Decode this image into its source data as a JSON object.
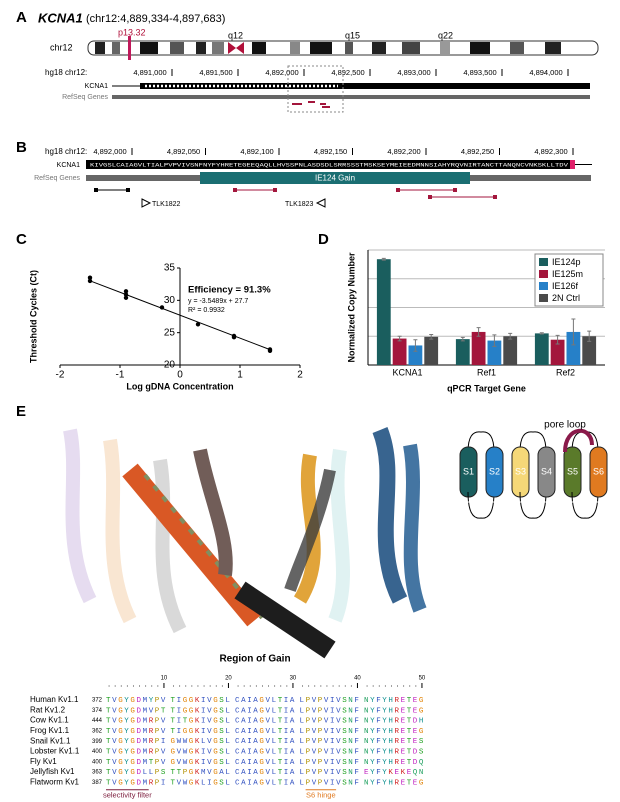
{
  "panel_labels": [
    "A",
    "B",
    "C",
    "D",
    "E"
  ],
  "panel_a": {
    "gene": "KCNA1",
    "coords": "(chr12:4,889,334-4,897,683)",
    "chromosome": "chr12",
    "bands": [
      "p13.32",
      "q12",
      "q15",
      "q22"
    ],
    "scale_label": "hg18 chr12:",
    "positions": [
      "4,891,000",
      "4,891,500",
      "4,892,000",
      "4,892,500",
      "4,893,000",
      "4,893,500",
      "4,894,000"
    ],
    "tracks": [
      "KCNA1",
      "RefSeq Genes"
    ]
  },
  "panel_b": {
    "scale_label": "hg18 chr12:",
    "positions": [
      "4,892,000",
      "4,892,050",
      "4,892,100",
      "4,892,150",
      "4,892,200",
      "4,892,250",
      "4,892,300"
    ],
    "tracks": [
      "KCNA1",
      "RefSeq Genes"
    ],
    "sequence": "KIVGSLCAIAGVLTIALPVPVIVSNFNYFYHRETEGEEQAQLLHVSSPNLASDSDLSRRSSSTMSKSEYMEIEEDMNNSIAHYRQVNIRTANCTTANQNCVNKSKLLTDV",
    "region": "IE124 Gain",
    "primers": [
      "TLK1822",
      "TLK1823"
    ]
  },
  "chart_data": [
    {
      "type": "scatter",
      "xlabel": "Log gDNA Concentration",
      "ylabel": "Threshold Cycles (Ct)",
      "x": [
        -1.5,
        -1.5,
        -0.9,
        -0.9,
        -0.9,
        -0.3,
        0.3,
        0.9,
        0.9,
        1.5,
        1.5
      ],
      "values": [
        33.5,
        33.0,
        31.4,
        30.9,
        30.4,
        28.9,
        26.3,
        24.5,
        24.3,
        22.4,
        22.2
      ],
      "color": "#000000",
      "trendline": {
        "x": [
          -1.5,
          1.5
        ],
        "y": [
          33.02,
          22.38
        ]
      },
      "annotations": [
        "Efficiency = 91.3%",
        "y = -3.5489x + 27.7",
        "R² = 0.9932"
      ],
      "xlim": [
        -2,
        2
      ],
      "ylim": [
        20,
        35
      ],
      "xticks": [
        -2,
        -1,
        0,
        1,
        2
      ],
      "yticks": [
        20,
        25,
        30,
        35
      ]
    },
    {
      "type": "bar",
      "xlabel": "qPCR Target Gene",
      "ylabel": "Normalized Copy Number",
      "categories": [
        "KCNA1",
        "Ref1",
        "Ref2"
      ],
      "series": [
        {
          "name": "IE124p",
          "color": "#1a5e5e",
          "values": [
            3.68,
            0.9,
            1.1
          ],
          "errors": [
            0.03,
            0.06,
            0.02
          ]
        },
        {
          "name": "IE125m",
          "color": "#a3163c",
          "values": [
            0.92,
            1.15,
            0.88
          ],
          "errors": [
            0.08,
            0.15,
            0.15
          ]
        },
        {
          "name": "IE126f",
          "color": "#2680c8",
          "values": [
            0.68,
            0.85,
            1.15
          ],
          "errors": [
            0.2,
            0.2,
            0.45
          ]
        },
        {
          "name": "2N Ctrl",
          "color": "#4a4a4a",
          "values": [
            0.98,
            1.0,
            1.0
          ],
          "errors": [
            0.08,
            0.1,
            0.18
          ]
        }
      ],
      "ylim": [
        0,
        4
      ],
      "yticks": [
        0,
        1,
        2,
        3,
        4
      ],
      "ytick_labels": false,
      "grid": true,
      "legend": "top-right"
    }
  ],
  "panel_e": {
    "region_label": "Region of Gain",
    "topology": {
      "segments": [
        "S1",
        "S2",
        "S3",
        "S4",
        "S5",
        "S6"
      ],
      "pore": "pore loop"
    },
    "alignment": {
      "ruler": [
        10,
        20,
        30,
        40,
        50
      ],
      "rows": [
        {
          "name": "Human Kv1.1",
          "start": "372",
          "sequence": "TVGYGDMYPVTIGGKIVGSLCAIAGVLTIALPVPVIVSNFNYFYHRETEG"
        },
        {
          "name": "Rat Kv1.2",
          "start": "374",
          "sequence": "TVGYGDMVPTTIGGKIVGSLCAIAGVLTIALPVPVIVSNFNYFYHRETEG"
        },
        {
          "name": "Cow Kv1.1",
          "start": "444",
          "sequence": "TVGYGDMRPVTITGKIVGSLCAIAGVLTIALPVPVIVSNFNYFYHRETDH"
        },
        {
          "name": "Frog Kv1.1",
          "start": "362",
          "sequence": "TVGYGDMRPVTIGGKIVGSLCAIAGVLTIALPVPVIVSNFNYFYHRETEG"
        },
        {
          "name": "Snail Kv1.1",
          "start": "399",
          "sequence": "TVGYGDMRPIGWWGKLVGSLCAIAGVLTIALPVPVIVSNFNYFYHRETES"
        },
        {
          "name": "Lobster Kv1.1",
          "start": "400",
          "sequence": "TVGYGDMRPVGVWGKIVGSLCAIAGVLTIALPVPVIVSNFNYFYHRETDS"
        },
        {
          "name": "Fly Kv1",
          "start": "400",
          "sequence": "TVGYGDMTPVGVWGKIVGSLCAIAGVLTIALPVPVIVSNFNYFYHRETDQ"
        },
        {
          "name": "Jellyfish Kv1",
          "start": "363",
          "sequence": "TVGYGDLLPSTTPGKMVGALCAIAGVLTIALPVPVIVSNFEYFYKEKEQN"
        },
        {
          "name": "Flatworm Kv1",
          "start": "387",
          "sequence": "TVGYGDMRPITVWGKLIGSLCAIAGVLTIALPVPVIVSNFNYFYHRETEG"
        }
      ],
      "annotations": [
        "selectivity filter",
        "S6 hinge"
      ]
    }
  }
}
